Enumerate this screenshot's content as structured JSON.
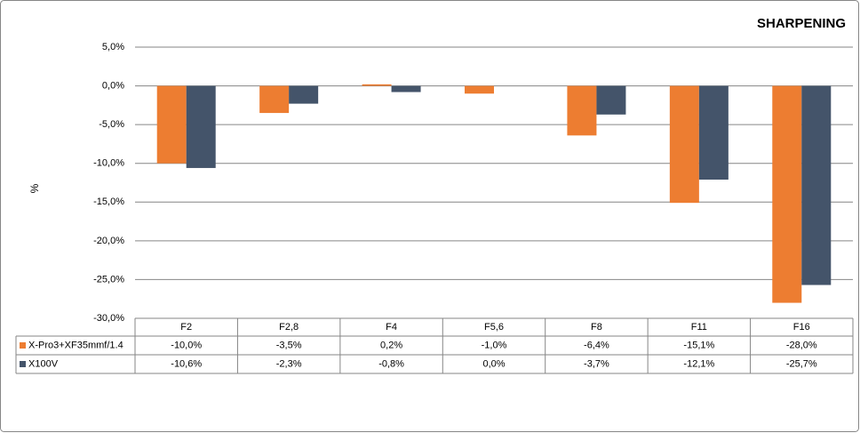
{
  "chart_data": {
    "type": "bar",
    "title": "SHARPENING",
    "y_label": "%",
    "categories": [
      "F2",
      "F2,8",
      "F4",
      "F5,6",
      "F8",
      "F11",
      "F16"
    ],
    "series": [
      {
        "name": "X-Pro3+XF35mmf/1.4",
        "color": "#ED7D31",
        "values": [
          -10.0,
          -3.5,
          0.2,
          -1.0,
          -6.4,
          -15.1,
          -28.0
        ],
        "value_labels": [
          "-10,0%",
          "-3,5%",
          "0,2%",
          "-1,0%",
          "-6,4%",
          "-15,1%",
          "-28,0%"
        ]
      },
      {
        "name": "X100V",
        "color": "#44546A",
        "values": [
          -10.6,
          -2.3,
          -0.8,
          0.0,
          -3.7,
          -12.1,
          -25.7
        ],
        "value_labels": [
          "-10,6%",
          "-2,3%",
          "-0,8%",
          "0,0%",
          "-3,7%",
          "-12,1%",
          "-25,7%"
        ]
      }
    ],
    "ylim": [
      -30,
      5
    ],
    "yticks": [
      {
        "value": 5,
        "label": "5,0%"
      },
      {
        "value": 0,
        "label": "0,0%"
      },
      {
        "value": -5,
        "label": "-5,0%"
      },
      {
        "value": -10,
        "label": "-10,0%"
      },
      {
        "value": -15,
        "label": "-15,0%"
      },
      {
        "value": -20,
        "label": "-20,0%"
      },
      {
        "value": -25,
        "label": "-25,0%"
      },
      {
        "value": -30,
        "label": "-30,0%"
      }
    ],
    "grid": true
  }
}
